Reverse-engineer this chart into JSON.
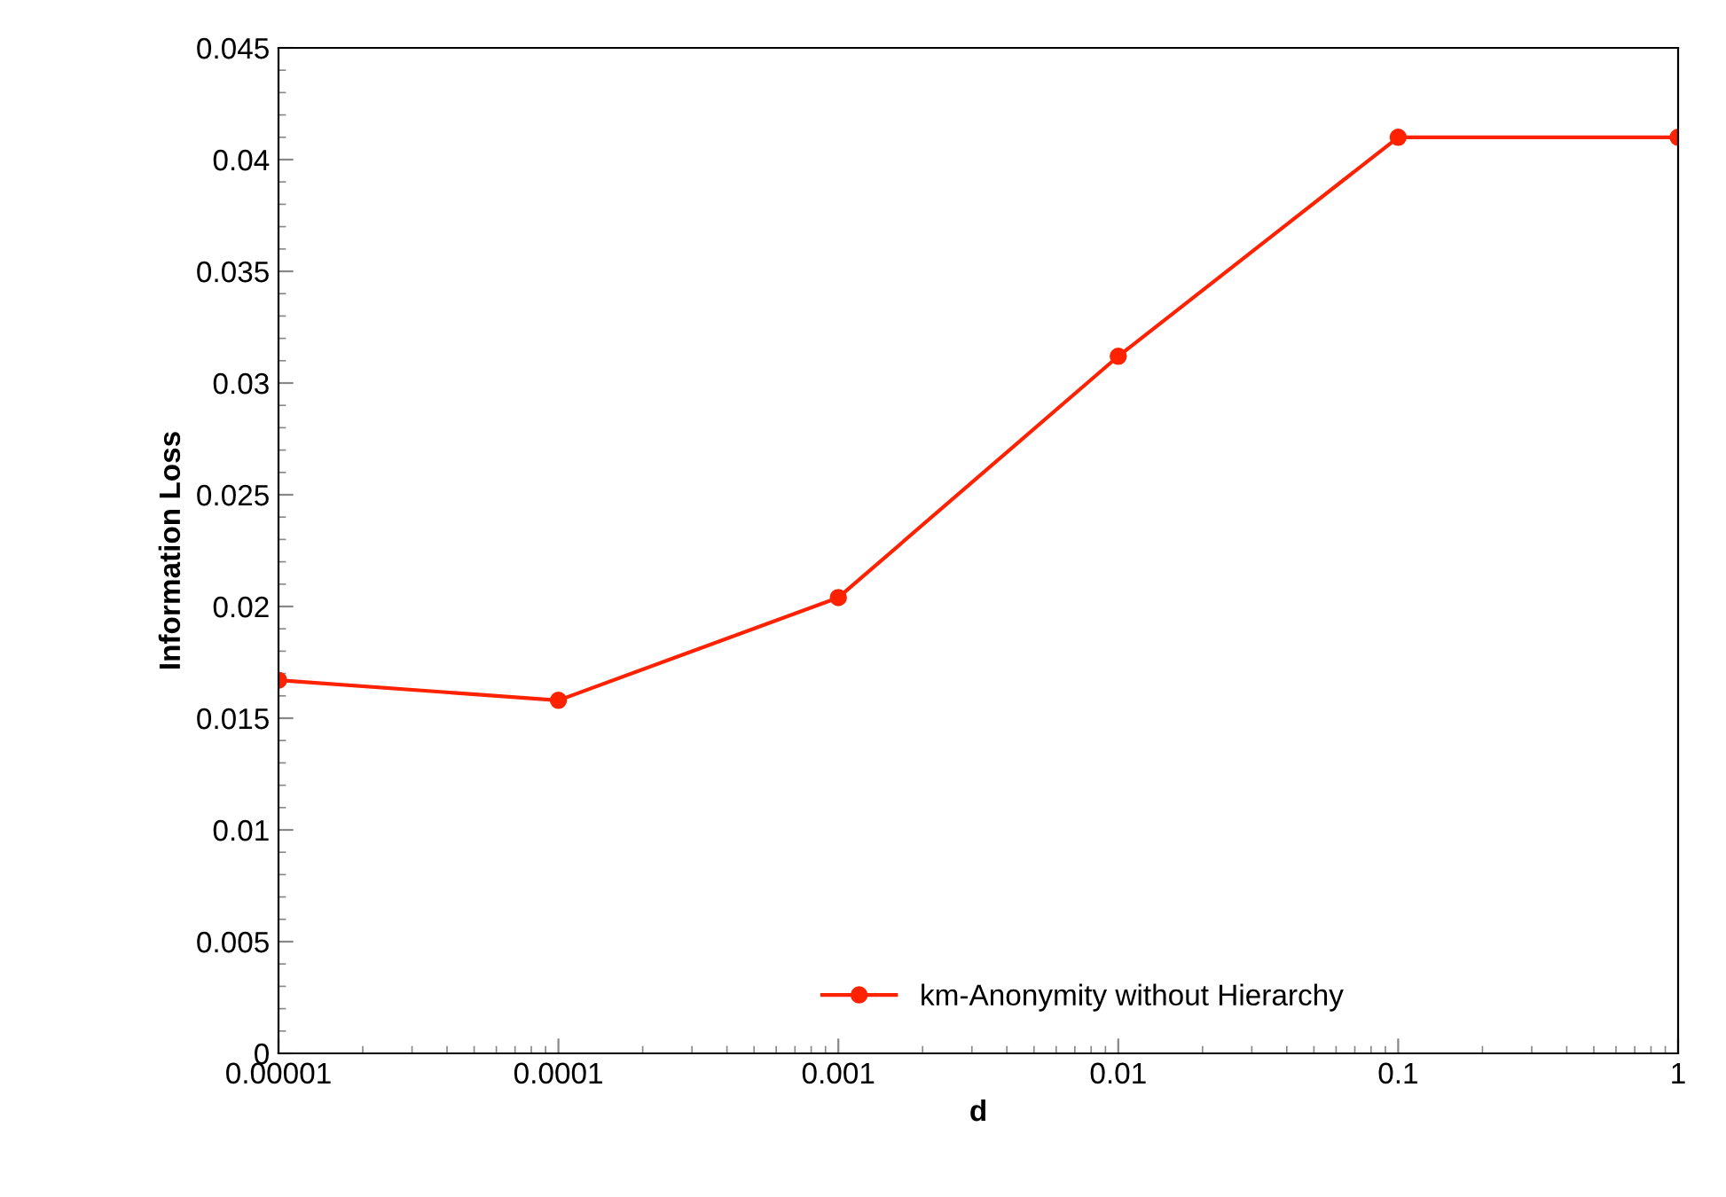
{
  "chart_data": {
    "type": "line",
    "xlabel": "d",
    "ylabel": "Information Loss",
    "x": [
      1e-05,
      0.0001,
      0.001,
      0.01,
      0.1,
      1
    ],
    "series": [
      {
        "name": "km-Anonymity without Hierarchy",
        "color": "#ff2200",
        "values": [
          0.0167,
          0.0158,
          0.0204,
          0.0312,
          0.041,
          0.041
        ]
      }
    ],
    "log": "x",
    "xlim": [
      1e-05,
      1
    ],
    "xticks": [
      {
        "value": 1e-05,
        "label": "0.00001"
      },
      {
        "value": 0.0001,
        "label": "0.0001"
      },
      {
        "value": 0.001,
        "label": "0.001"
      },
      {
        "value": 0.01,
        "label": "0.01"
      },
      {
        "value": 0.1,
        "label": "0.1"
      },
      1
    ],
    "ylim": [
      0,
      0.045
    ],
    "yticks": [
      0,
      0.005,
      0.01,
      0.015,
      0.02,
      0.025,
      0.03,
      0.035,
      0.04,
      0.045
    ],
    "grid": false,
    "legend": "bottom right",
    "marker": "circle",
    "line_style": "solid"
  }
}
